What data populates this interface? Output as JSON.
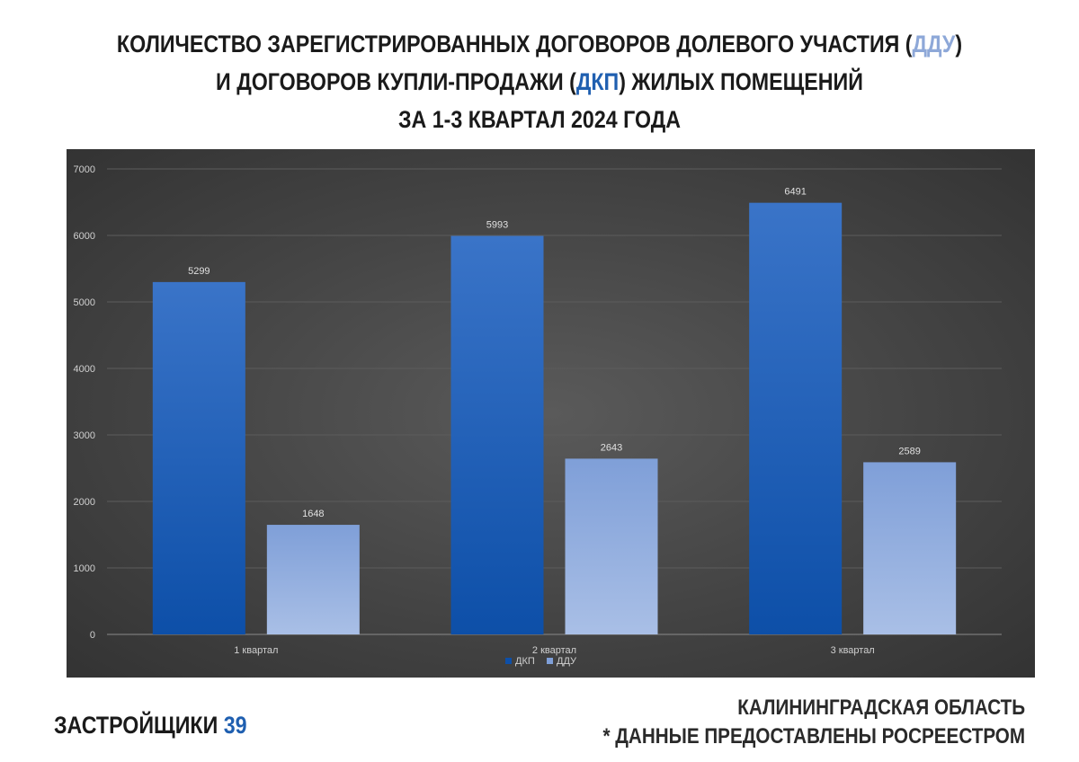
{
  "title": {
    "line1_prefix": "КОЛИЧЕСТВО ЗАРЕГИСТРИРОВАННЫХ ДОГОВОРОВ ДОЛЕВОГО УЧАСТИЯ (",
    "line1_abbr": "ДДУ",
    "line1_suffix": ")",
    "line2_prefix": "И ДОГОВОРОВ КУПЛИ-ПРОДАЖИ (",
    "line2_abbr": "ДКП",
    "line2_suffix": ") ЖИЛЫХ ПОМЕЩЕНИЙ",
    "line3": "ЗА 1-3 КВАРТАЛ 2024 ГОДА"
  },
  "footer": {
    "brand_name": "ЗАСТРОЙЩИКИ ",
    "brand_number": "39",
    "region": "КАЛИНИНГРАДСКАЯ ОБЛАСТЬ",
    "source_note": "* ДАННЫЕ ПРЕДОСТАВЛЕНЫ РОСРЕЕСТРОМ"
  },
  "colors": {
    "dkp_top": "#3a74c8",
    "dkp_bottom": "#0d4fa8",
    "ddu_top": "#7f9fd8",
    "ddu_bottom": "#a9bfe6",
    "title_dkp": "#1f5fb0",
    "title_ddu": "#8ea8d8"
  },
  "chart_data": {
    "type": "bar",
    "categories": [
      "1 квартал",
      "2 квартал",
      "3 квартал"
    ],
    "series": [
      {
        "name": "ДКП",
        "values": [
          5299,
          5993,
          6491
        ]
      },
      {
        "name": "ДДУ",
        "values": [
          1648,
          2643,
          2589
        ]
      }
    ],
    "ylim": [
      0,
      7000
    ],
    "yticks": [
      "0",
      "1000",
      "2000",
      "3000",
      "4000",
      "5000",
      "6000",
      "7000"
    ],
    "grid": true,
    "legend": "bottom-center"
  }
}
